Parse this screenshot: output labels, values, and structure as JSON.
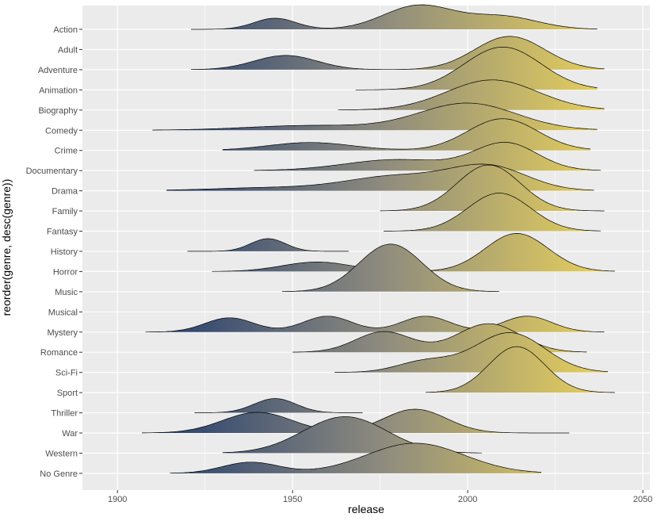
{
  "chart_data": {
    "type": "ridgeline",
    "xlabel": "release",
    "ylabel": "reorder(genre, desc(genre))",
    "xlim": [
      1890,
      2052
    ],
    "x_ticks": [
      1900,
      1950,
      2000,
      2050
    ],
    "x_tick_labels": [
      "1900",
      "1950",
      "2000",
      "2050"
    ],
    "fill_gradient": {
      "low": "#1f3a6e",
      "mid": "#8c8a7e",
      "high": "#ead25a",
      "range": [
        1907,
        2042
      ]
    },
    "panel_background": "#ebebeb",
    "gridline_color": "#ffffff",
    "grid": true,
    "categories": [
      "Action",
      "Adult",
      "Adventure",
      "Animation",
      "Biography",
      "Comedy",
      "Crime",
      "Documentary",
      "Drama",
      "Family",
      "Fantasy",
      "History",
      "Horror",
      "Music",
      "Musical",
      "Mystery",
      "Romance",
      "Sci-Fi",
      "Sport",
      "Thriller",
      "War",
      "Western",
      "No Genre"
    ],
    "series": [
      {
        "genre": "Action",
        "range": [
          1921,
          2037
        ],
        "peaks": [
          [
            1945,
            14,
            6
          ],
          [
            1986,
            30,
            10
          ],
          [
            2010,
            16,
            10
          ]
        ]
      },
      {
        "genre": "Adult",
        "range": [
          1921,
          2037
        ],
        "peaks": []
      },
      {
        "genre": "Adventure",
        "range": [
          1921,
          2039
        ],
        "peaks": [
          [
            1948,
            18,
            9
          ],
          [
            2012,
            42,
            10
          ]
        ]
      },
      {
        "genre": "Animation",
        "range": [
          1968,
          2037
        ],
        "peaks": [
          [
            2010,
            54,
            11
          ]
        ]
      },
      {
        "genre": "Biography",
        "range": [
          1963,
          2039
        ],
        "peaks": [
          [
            2007,
            38,
            13
          ]
        ]
      },
      {
        "genre": "Comedy",
        "range": [
          1910,
          2037
        ],
        "peaks": [
          [
            1955,
            6,
            18
          ],
          [
            2000,
            34,
            14
          ]
        ]
      },
      {
        "genre": "Crime",
        "range": [
          1930,
          2035
        ],
        "peaks": [
          [
            1955,
            10,
            12
          ],
          [
            2010,
            40,
            10
          ]
        ]
      },
      {
        "genre": "Documentary",
        "range": [
          1939,
          2038
        ],
        "peaks": [
          [
            1980,
            14,
            15
          ],
          [
            2011,
            34,
            9
          ]
        ]
      },
      {
        "genre": "Drama",
        "range": [
          1914,
          2036
        ],
        "peaks": [
          [
            1945,
            4,
            18
          ],
          [
            1980,
            18,
            14
          ],
          [
            2006,
            30,
            11
          ]
        ]
      },
      {
        "genre": "Family",
        "range": [
          1975,
          2039
        ],
        "peaks": [
          [
            2006,
            58,
            9
          ]
        ]
      },
      {
        "genre": "Fantasy",
        "range": [
          1976,
          2038
        ],
        "peaks": [
          [
            2009,
            48,
            9
          ]
        ]
      },
      {
        "genre": "History",
        "range": [
          1920,
          1966
        ],
        "peaks": [
          [
            1943,
            16,
            5
          ]
        ]
      },
      {
        "genre": "Horror",
        "range": [
          1927,
          2042
        ],
        "peaks": [
          [
            1957,
            12,
            10
          ],
          [
            2014,
            48,
            9
          ]
        ]
      },
      {
        "genre": "Music",
        "range": [
          1947,
          2009
        ],
        "peaks": [
          [
            1978,
            60,
            9
          ]
        ]
      },
      {
        "genre": "Musical",
        "range": [
          1947,
          2009
        ],
        "peaks": []
      },
      {
        "genre": "Mystery",
        "range": [
          1908,
          2039
        ],
        "peaks": [
          [
            1932,
            18,
            7
          ],
          [
            1960,
            20,
            7
          ],
          [
            1988,
            20,
            7
          ],
          [
            2017,
            20,
            7
          ]
        ]
      },
      {
        "genre": "Romance",
        "range": [
          1950,
          2034
        ],
        "peaks": [
          [
            1976,
            26,
            8
          ],
          [
            2006,
            36,
            9
          ]
        ]
      },
      {
        "genre": "Sci-Fi",
        "range": [
          1962,
          2040
        ],
        "peaks": [
          [
            1988,
            14,
            8
          ],
          [
            2012,
            50,
            10
          ]
        ]
      },
      {
        "genre": "Sport",
        "range": [
          1988,
          2042
        ],
        "peaks": [
          [
            2014,
            58,
            8
          ]
        ]
      },
      {
        "genre": "Thriller",
        "range": [
          1922,
          1970
        ],
        "peaks": [
          [
            1945,
            18,
            6
          ]
        ]
      },
      {
        "genre": "War",
        "range": [
          1907,
          2029
        ],
        "peaks": [
          [
            1940,
            26,
            10
          ],
          [
            1985,
            30,
            9
          ]
        ]
      },
      {
        "genre": "Western",
        "range": [
          1930,
          2004
        ],
        "peaks": [
          [
            1965,
            46,
            12
          ]
        ]
      },
      {
        "genre": "No Genre",
        "range": [
          1915,
          2021
        ],
        "peaks": [
          [
            1938,
            14,
            8
          ],
          [
            1985,
            38,
            14
          ]
        ]
      }
    ]
  }
}
